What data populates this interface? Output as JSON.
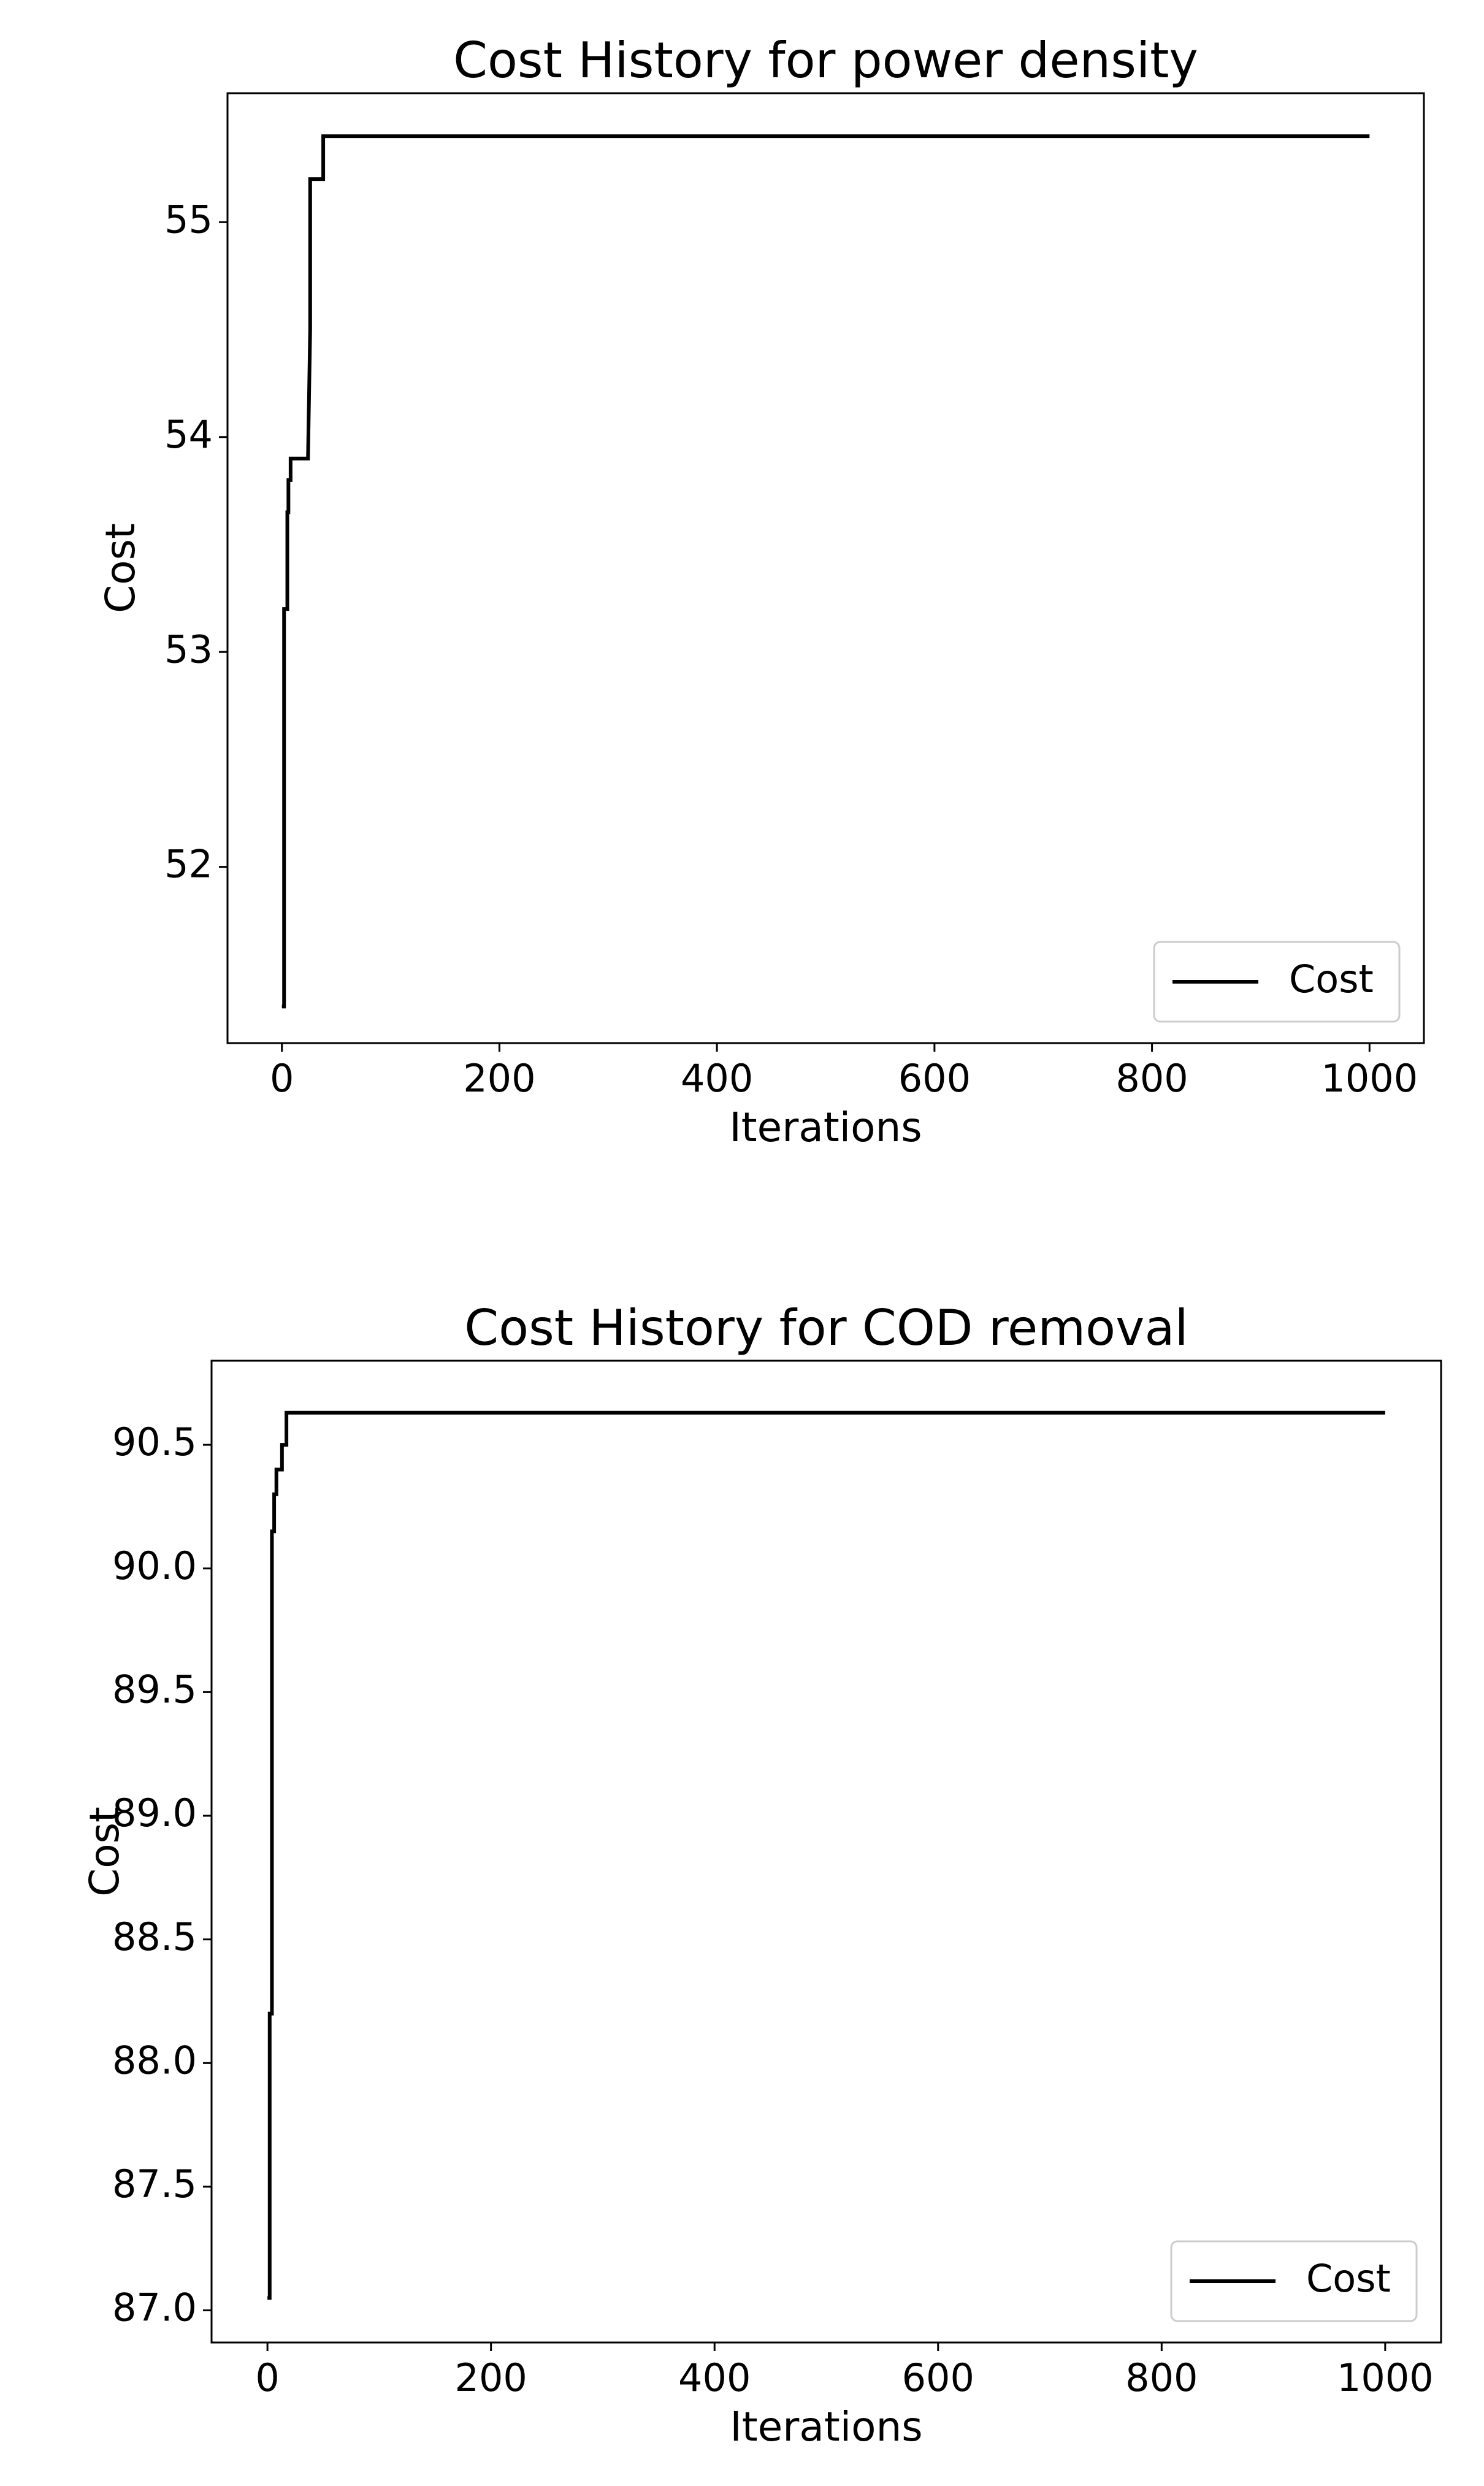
{
  "chart_data": [
    {
      "type": "line",
      "title": "Cost History for power density",
      "x_label": "Iterations",
      "y_label": "Cost",
      "x": [
        0,
        2,
        2,
        5,
        5,
        6,
        6,
        8,
        8,
        24,
        26,
        26,
        36,
        38,
        38,
        1000
      ],
      "series": [
        {
          "name": "Cost",
          "color": "#000000",
          "values": [
            51.35,
            51.35,
            53.2,
            53.2,
            53.65,
            53.65,
            53.8,
            53.8,
            53.9,
            53.9,
            54.5,
            55.2,
            55.2,
            55.2,
            55.4,
            55.4
          ]
        }
      ],
      "xlim": [
        -50,
        1050
      ],
      "xticks": [
        0,
        200,
        400,
        600,
        800,
        1000
      ],
      "ylim": [
        51.18,
        55.6
      ],
      "yticks": [
        52,
        53,
        54,
        55
      ],
      "legend": "lower right",
      "grid": false
    },
    {
      "type": "line",
      "title": "Cost History for COD removal",
      "x_label": "Iterations",
      "y_label": "Cost",
      "x": [
        0,
        2,
        2,
        4,
        4,
        6,
        6,
        8,
        8,
        13,
        13,
        17,
        17,
        1000
      ],
      "series": [
        {
          "name": "Cost",
          "color": "#000000",
          "values": [
            87.05,
            87.05,
            88.2,
            88.2,
            90.15,
            90.15,
            90.3,
            90.3,
            90.4,
            90.4,
            90.5,
            90.5,
            90.63,
            90.63
          ]
        }
      ],
      "xlim": [
        -50,
        1050
      ],
      "xticks": [
        0,
        200,
        400,
        600,
        800,
        1000
      ],
      "ylim": [
        86.87,
        90.84
      ],
      "yticks": [
        {
          "value": 87,
          "label": "87.0"
        },
        87.5,
        {
          "value": 88,
          "label": "88.0"
        },
        88.5,
        {
          "value": 89,
          "label": "89.0"
        },
        89.5,
        {
          "value": 90,
          "label": "90.0"
        },
        90.5
      ],
      "legend": "lower right",
      "grid": false
    }
  ]
}
